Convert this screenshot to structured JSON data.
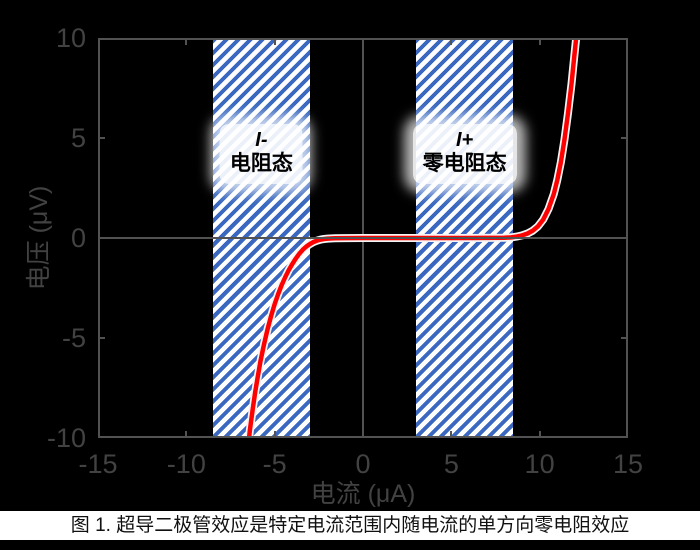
{
  "figure": {
    "caption": "图 1. 超导二极管效应是特定电流范围内随电流的单方向零电阻效应"
  },
  "chart_data": {
    "type": "line",
    "title": "",
    "xlabel": "电流 (μA)",
    "ylabel": "电压 (μV)",
    "xlim": [
      -15,
      15
    ],
    "ylim": [
      -10,
      10
    ],
    "xticks": [
      -15,
      -10,
      -5,
      0,
      5,
      10,
      15
    ],
    "yticks": [
      10,
      5,
      0,
      -5,
      -10
    ],
    "grid": false,
    "background_color": "#000000",
    "axis_color": "#525252",
    "tick_label_color": "#424242",
    "series": [
      {
        "name": "superconducting-diode-iv-curve",
        "color": "#ff0000",
        "halo_color": "#f5f5f5",
        "points": [
          [
            -6.55,
            -10.8
          ],
          [
            -6.4,
            -9.6
          ],
          [
            -6.25,
            -8.6
          ],
          [
            -6.1,
            -7.7
          ],
          [
            -5.95,
            -6.9
          ],
          [
            -5.8,
            -6.15
          ],
          [
            -5.6,
            -5.3
          ],
          [
            -5.4,
            -4.55
          ],
          [
            -5.2,
            -3.9
          ],
          [
            -5.0,
            -3.3
          ],
          [
            -4.8,
            -2.8
          ],
          [
            -4.6,
            -2.35
          ],
          [
            -4.4,
            -1.95
          ],
          [
            -4.2,
            -1.6
          ],
          [
            -4.0,
            -1.3
          ],
          [
            -3.8,
            -1.02
          ],
          [
            -3.6,
            -0.78
          ],
          [
            -3.4,
            -0.58
          ],
          [
            -3.2,
            -0.42
          ],
          [
            -3.0,
            -0.3
          ],
          [
            -2.8,
            -0.2
          ],
          [
            -2.6,
            -0.13
          ],
          [
            -2.4,
            -0.08
          ],
          [
            -2.2,
            -0.05
          ],
          [
            -2.0,
            -0.03
          ],
          [
            -1.6,
            -0.015
          ],
          [
            -1.0,
            -0.005
          ],
          [
            0,
            0
          ],
          [
            2,
            0
          ],
          [
            4,
            0
          ],
          [
            6,
            0
          ],
          [
            8,
            0.01
          ],
          [
            8.4,
            0.03
          ],
          [
            8.7,
            0.07
          ],
          [
            9.0,
            0.13
          ],
          [
            9.3,
            0.22
          ],
          [
            9.6,
            0.36
          ],
          [
            9.9,
            0.58
          ],
          [
            10.2,
            0.92
          ],
          [
            10.5,
            1.45
          ],
          [
            10.8,
            2.2
          ],
          [
            11.0,
            2.9
          ],
          [
            11.2,
            3.8
          ],
          [
            11.4,
            4.9
          ],
          [
            11.6,
            6.2
          ],
          [
            11.8,
            7.7
          ],
          [
            11.95,
            9.0
          ],
          [
            12.1,
            10.3
          ],
          [
            12.18,
            10.9
          ]
        ]
      }
    ],
    "regions": [
      {
        "name": "negative-resistive-state",
        "x_range": [
          -8.5,
          -3
        ],
        "label_line1": "I-",
        "label_line2": "电阻态",
        "hatch_color": "#3a68c0",
        "hatch_bg": "#ffffff"
      },
      {
        "name": "positive-zero-resistance-state",
        "x_range": [
          3,
          8.5
        ],
        "label_line1": "I+",
        "label_line2": "零电阻态",
        "hatch_color": "#3a68c0",
        "hatch_bg": "#ffffff"
      }
    ]
  }
}
